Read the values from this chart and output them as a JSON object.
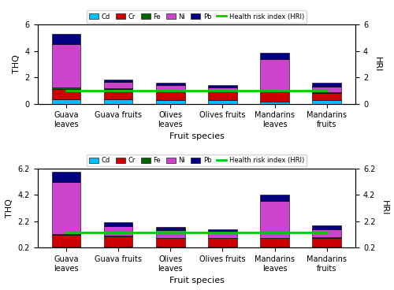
{
  "categories": [
    "Guava\nleaves",
    "Guava fruits",
    "Olives\nleaves",
    "Olives fruits",
    "Mandarins\nleaves",
    "Mandarins\nfruits"
  ],
  "top_chart": {
    "Cd": [
      0.35,
      0.35,
      0.25,
      0.25,
      0.15,
      0.25
    ],
    "Cr": [
      0.75,
      0.75,
      0.65,
      0.65,
      0.75,
      0.55
    ],
    "Fe": [
      0.1,
      0.05,
      0.05,
      0.05,
      0.05,
      0.05
    ],
    "Ni": [
      3.3,
      0.5,
      0.45,
      0.3,
      2.45,
      0.45
    ],
    "Pb": [
      0.8,
      0.2,
      0.2,
      0.15,
      0.45,
      0.3
    ],
    "HRI": [
      1.0,
      1.0,
      1.0,
      1.0,
      1.0,
      1.0
    ],
    "ylim": [
      0,
      6
    ],
    "yticks": [
      0,
      2,
      4,
      6
    ]
  },
  "bottom_chart": {
    "Cd": [
      0.3,
      0.3,
      0.25,
      0.25,
      0.25,
      0.25
    ],
    "Cr": [
      0.85,
      0.75,
      0.65,
      0.65,
      0.65,
      0.7
    ],
    "Fe": [
      0.1,
      0.05,
      0.05,
      0.05,
      0.05,
      0.05
    ],
    "Ni": [
      3.9,
      0.7,
      0.55,
      0.45,
      2.8,
      0.6
    ],
    "Pb": [
      0.8,
      0.3,
      0.25,
      0.2,
      0.45,
      0.3
    ],
    "HRI": [
      1.35,
      1.35,
      1.35,
      1.35,
      1.35,
      1.35
    ],
    "ylim": [
      0.2,
      6.2
    ],
    "yticks": [
      0.2,
      2.2,
      4.2,
      6.2
    ]
  },
  "colors": {
    "Cd": "#00bfff",
    "Cr": "#cc0000",
    "Fe": "#006400",
    "Ni": "#cc44cc",
    "Pb": "#000080",
    "HRI": "#00cc00"
  },
  "xlabel": "Fruit species",
  "ylabel_left": "THQ",
  "ylabel_right": "HRI",
  "fig_width": 5.0,
  "fig_height": 3.68,
  "dpi": 100
}
